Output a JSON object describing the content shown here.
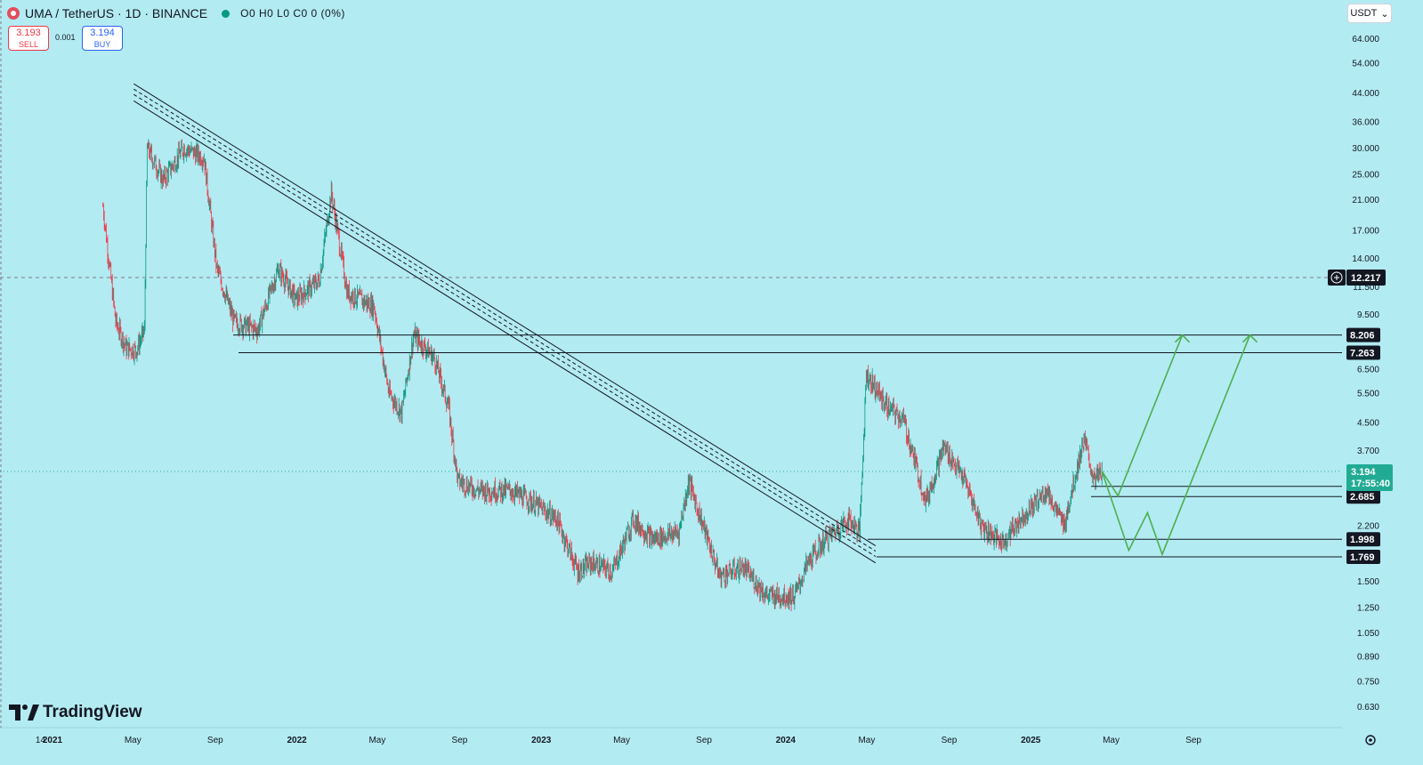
{
  "header": {
    "symbol": "UMA / TetherUS · 1D · BINANCE",
    "ohlc": "O0 H0 L0 C0 0 (0%)"
  },
  "trade": {
    "sell_price": "3.193",
    "sell_label": "SELL",
    "spread": "0.001",
    "buy_price": "3.194",
    "buy_label": "BUY"
  },
  "currency_button": "USDT",
  "logo_text": "TradingView",
  "colors": {
    "background": "#b3ebf2",
    "up": "#089981",
    "down": "#f23645",
    "projection": "#4caf50",
    "level_line": "#131722",
    "current_price_tag": "#22ab94"
  },
  "chart_data": {
    "type": "candlestick",
    "symbol": "UMA/USDT",
    "interval": "1D",
    "exchange": "BINANCE",
    "scale": "log",
    "y_ticks": [
      "64.000",
      "54.000",
      "44.000",
      "36.000",
      "30.000",
      "25.000",
      "21.000",
      "17.000",
      "14.000",
      "11.500",
      "9.500",
      "6.500",
      "5.500",
      "4.500",
      "3.700",
      "2.200",
      "1.500",
      "1.250",
      "1.050",
      "0.890",
      "0.750",
      "0.630"
    ],
    "x_ticks": [
      "14",
      "2021",
      "May",
      "Sep",
      "2022",
      "May",
      "Sep",
      "2023",
      "May",
      "Sep",
      "2024",
      "May",
      "Sep",
      "2025",
      "May",
      "Sep"
    ],
    "price_path": [
      [
        "2020-12-01",
        20.0
      ],
      [
        "2020-12-20",
        9.0
      ],
      [
        "2021-01-05",
        7.5
      ],
      [
        "2021-01-20",
        7.4
      ],
      [
        "2021-02-01",
        8.5
      ],
      [
        "2021-02-05",
        30.0
      ],
      [
        "2021-03-01",
        24.0
      ],
      [
        "2021-04-01",
        30.0
      ],
      [
        "2021-05-01",
        28.0
      ],
      [
        "2021-05-20",
        13.0
      ],
      [
        "2021-06-15",
        9.0
      ],
      [
        "2021-07-20",
        8.5
      ],
      [
        "2021-08-20",
        13.0
      ],
      [
        "2021-09-15",
        10.5
      ],
      [
        "2021-10-20",
        12.0
      ],
      [
        "2021-11-07",
        22.0
      ],
      [
        "2021-12-01",
        11.0
      ],
      [
        "2022-01-10",
        10.0
      ],
      [
        "2022-02-01",
        5.5
      ],
      [
        "2022-02-20",
        4.8
      ],
      [
        "2022-03-10",
        8.2
      ],
      [
        "2022-04-10",
        7.0
      ],
      [
        "2022-05-01",
        5.0
      ],
      [
        "2022-05-15",
        3.0
      ],
      [
        "2022-06-15",
        2.8
      ],
      [
        "2022-08-01",
        2.8
      ],
      [
        "2022-09-01",
        2.6
      ],
      [
        "2022-10-10",
        2.3
      ],
      [
        "2022-11-10",
        1.6
      ],
      [
        "2022-12-01",
        1.7
      ],
      [
        "2023-01-01",
        1.6
      ],
      [
        "2023-02-01",
        2.3
      ],
      [
        "2023-03-01",
        2.0
      ],
      [
        "2023-04-10",
        2.1
      ],
      [
        "2023-04-25",
        3.0
      ],
      [
        "2023-05-10",
        2.4
      ],
      [
        "2023-06-10",
        1.55
      ],
      [
        "2023-07-15",
        1.65
      ],
      [
        "2023-08-20",
        1.35
      ],
      [
        "2023-09-30",
        1.35
      ],
      [
        "2023-10-20",
        1.7
      ],
      [
        "2023-11-15",
        2.0
      ],
      [
        "2023-12-20",
        2.3
      ],
      [
        "2024-01-05",
        2.1
      ],
      [
        "2024-01-15",
        6.3
      ],
      [
        "2024-02-15",
        5.0
      ],
      [
        "2024-03-10",
        4.6
      ],
      [
        "2024-04-13",
        2.6
      ],
      [
        "2024-05-10",
        3.8
      ],
      [
        "2024-06-10",
        3.0
      ],
      [
        "2024-07-05",
        2.2
      ],
      [
        "2024-08-05",
        1.95
      ],
      [
        "2024-09-01",
        2.3
      ],
      [
        "2024-10-10",
        2.8
      ],
      [
        "2024-11-05",
        2.2
      ],
      [
        "2024-12-05",
        4.0
      ],
      [
        "2024-12-20",
        3.0
      ],
      [
        "2025-01-01",
        3.194
      ]
    ],
    "levels": [
      {
        "value": 8.206,
        "label": "8.206"
      },
      {
        "value": 7.263,
        "label": "7.263"
      },
      {
        "value": 2.881,
        "label": "2.881"
      },
      {
        "value": 2.685,
        "label": "2.685"
      },
      {
        "value": 1.998,
        "label": "1.998"
      },
      {
        "value": 1.769,
        "label": "1.769"
      }
    ],
    "crosshair_price": "12.217",
    "current_price": "3.194",
    "countdown": "17:55:40",
    "trend_channel": {
      "start": [
        "2021-01-20",
        44.0
      ],
      "end": [
        "2024-01-05",
        1.8
      ]
    },
    "projections": [
      [
        [
          "2025-01-01",
          3.194
        ],
        [
          "2025-01-25",
          2.7
        ],
        [
          "2025-05-01",
          8.206
        ]
      ],
      [
        [
          "2025-01-01",
          3.194
        ],
        [
          "2025-02-10",
          1.85
        ],
        [
          "2025-03-10",
          2.4
        ],
        [
          "2025-04-01",
          1.8
        ],
        [
          "2025-08-10",
          8.206
        ]
      ]
    ]
  }
}
